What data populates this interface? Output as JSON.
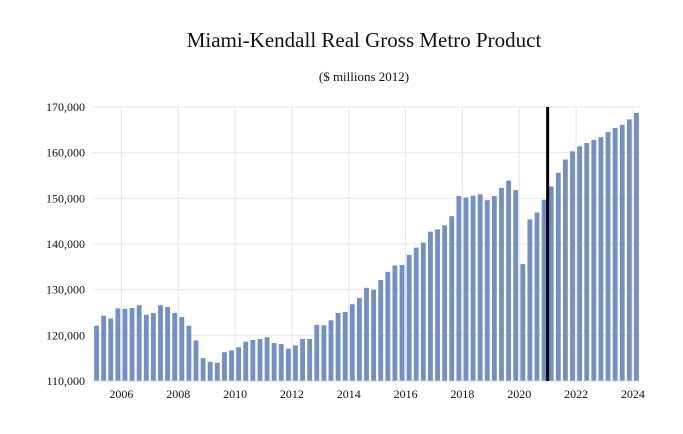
{
  "chart_data": {
    "type": "bar",
    "title": "Miami-Kendall Real Gross Metro Product",
    "subtitle": "($ millions 2012)",
    "xlabel": "",
    "ylabel": "",
    "ylim": [
      110000,
      170000
    ],
    "y_ticks": [
      110000,
      120000,
      130000,
      140000,
      150000,
      160000,
      170000
    ],
    "y_tick_labels": [
      "110,000",
      "120,000",
      "130,000",
      "140,000",
      "150,000",
      "160,000",
      "170,000"
    ],
    "x_tick_labels": [
      "2006",
      "2008",
      "2010",
      "2012",
      "2014",
      "2016",
      "2018",
      "2020",
      "2022",
      "2024"
    ],
    "x_tick_years": [
      2006,
      2008,
      2010,
      2012,
      2014,
      2016,
      2018,
      2020,
      2022,
      2024
    ],
    "start_year": 2005,
    "start_quarter": 1,
    "bar_color": "#7390c4",
    "forecast_divider_color": "#000000",
    "forecast_divider_after_quarter": "2020Q4",
    "grid": true,
    "series": [
      {
        "values": [
          122100,
          124300,
          123700,
          125900,
          125800,
          126000,
          126600,
          124500,
          124900,
          126600,
          126200,
          124900,
          124000,
          122100,
          118900,
          115000,
          114200,
          114000,
          116300,
          116700,
          117400,
          118600,
          119000,
          119200,
          119600,
          118300,
          118100,
          117100,
          117800,
          119200,
          119200,
          122300,
          122200,
          123300,
          124900,
          125100,
          126800,
          128200,
          130400,
          130000,
          132100,
          133900,
          135300,
          135400,
          137600,
          139200,
          140300,
          142700,
          143200,
          144100,
          146100,
          150500,
          150200,
          150600,
          150900,
          149600,
          150500,
          152300,
          153900,
          151800,
          135600,
          145400,
          146900,
          149700,
          152600,
          155600,
          158500,
          160300,
          161400,
          162100,
          162800,
          163400,
          164500,
          165400,
          166100,
          167300,
          168700
        ]
      }
    ]
  }
}
